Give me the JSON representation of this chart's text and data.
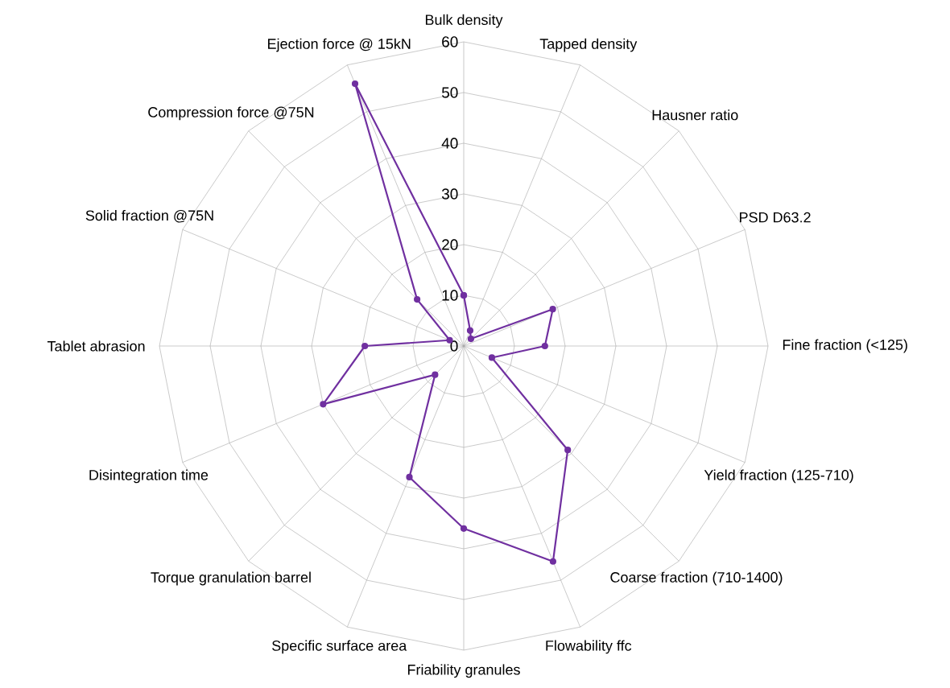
{
  "chart_data": {
    "type": "radar",
    "categories": [
      "Bulk density",
      "Tapped density",
      "Hausner ratio",
      "PSD D63.2",
      "Fine fraction (<125)",
      "Yield fraction (125-710)",
      "Coarse fraction (710-1400)",
      "Flowability ffc",
      "Friability granules",
      "Specific surface area",
      "Torque granulation barrel",
      "Disintegration time",
      "Tablet abrasion",
      "Solid fraction @75N",
      "Compression force @75N",
      "Ejection force @ 15kN"
    ],
    "series": [
      {
        "color": "#7030a0",
        "values": [
          10,
          3.3,
          2,
          19,
          16,
          6,
          29,
          46,
          36,
          28,
          8,
          30,
          19.5,
          3,
          13,
          56
        ]
      }
    ],
    "ylim": [
      0,
      60
    ],
    "yticks": [
      0,
      10,
      20,
      30,
      40,
      50,
      60
    ],
    "marker": "circle",
    "line_style": "solid",
    "grid": true
  }
}
